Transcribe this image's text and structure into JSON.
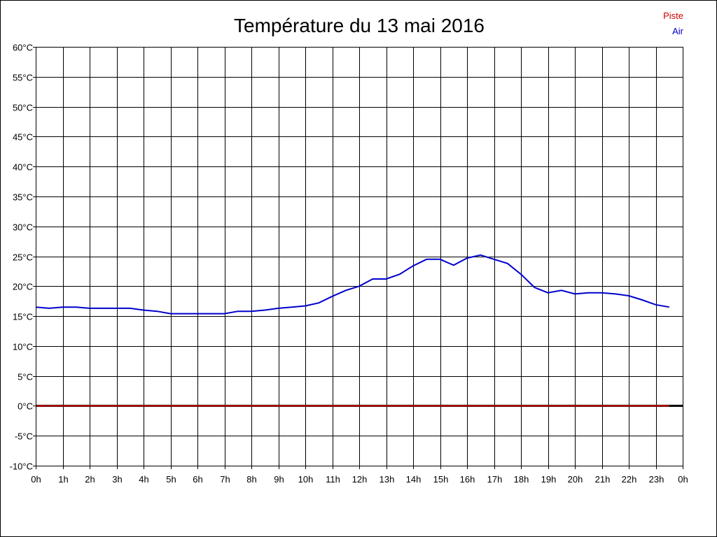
{
  "chart_data": {
    "type": "line",
    "title": "Température du 13 mai 2016",
    "xlabel": "",
    "ylabel": "",
    "ylim": [
      -10,
      60
    ],
    "xlim": [
      0,
      24
    ],
    "grid": true,
    "legend_position": "top-right",
    "y_ticks": [
      60,
      55,
      50,
      45,
      40,
      35,
      30,
      25,
      20,
      15,
      10,
      5,
      0,
      -5,
      -10
    ],
    "y_tick_labels": [
      "60°C",
      "55°C",
      "50°C",
      "45°C",
      "40°C",
      "35°C",
      "30°C",
      "25°C",
      "20°C",
      "15°C",
      "10°C",
      "5°C",
      "0°C",
      "-5°C",
      "-10°C"
    ],
    "x_ticks": [
      0,
      1,
      2,
      3,
      4,
      5,
      6,
      7,
      8,
      9,
      10,
      11,
      12,
      13,
      14,
      15,
      16,
      17,
      18,
      19,
      20,
      21,
      22,
      23,
      24
    ],
    "x_tick_labels": [
      "0h",
      "1h",
      "2h",
      "3h",
      "4h",
      "5h",
      "6h",
      "7h",
      "8h",
      "9h",
      "10h",
      "11h",
      "12h",
      "13h",
      "14h",
      "15h",
      "16h",
      "17h",
      "18h",
      "19h",
      "20h",
      "21h",
      "22h",
      "23h",
      "0h"
    ],
    "series": [
      {
        "name": "Piste",
        "color": "#cc0000",
        "x": [
          0,
          23.5
        ],
        "y": [
          0,
          0
        ]
      },
      {
        "name": "Air",
        "color": "#0000cc",
        "x": [
          0,
          0.5,
          1,
          1.5,
          2,
          2.5,
          3,
          3.5,
          4,
          4.5,
          5,
          5.5,
          6,
          6.5,
          7,
          7.5,
          8,
          8.5,
          9,
          9.5,
          10,
          10.5,
          11,
          11.5,
          12,
          12.5,
          13,
          13.5,
          14,
          14.5,
          15,
          15.5,
          16,
          16.5,
          17,
          17.5,
          18,
          18.5,
          19,
          19.5,
          20,
          20.5,
          21,
          21.5,
          22,
          22.5,
          23,
          23.5
        ],
        "y": [
          16.5,
          16.3,
          16.5,
          16.5,
          16.3,
          16.3,
          16.3,
          16.3,
          16.0,
          15.8,
          15.4,
          15.4,
          15.4,
          15.4,
          15.4,
          15.8,
          15.8,
          16.0,
          16.3,
          16.5,
          16.7,
          17.2,
          18.3,
          19.3,
          20.0,
          21.2,
          21.2,
          22.0,
          23.4,
          24.5,
          24.5,
          23.5,
          24.7,
          25.2,
          24.5,
          23.8,
          22.0,
          19.8,
          18.9,
          19.3,
          18.7,
          18.9,
          18.9,
          18.7,
          18.4,
          17.7,
          16.9,
          16.5
        ]
      }
    ]
  }
}
